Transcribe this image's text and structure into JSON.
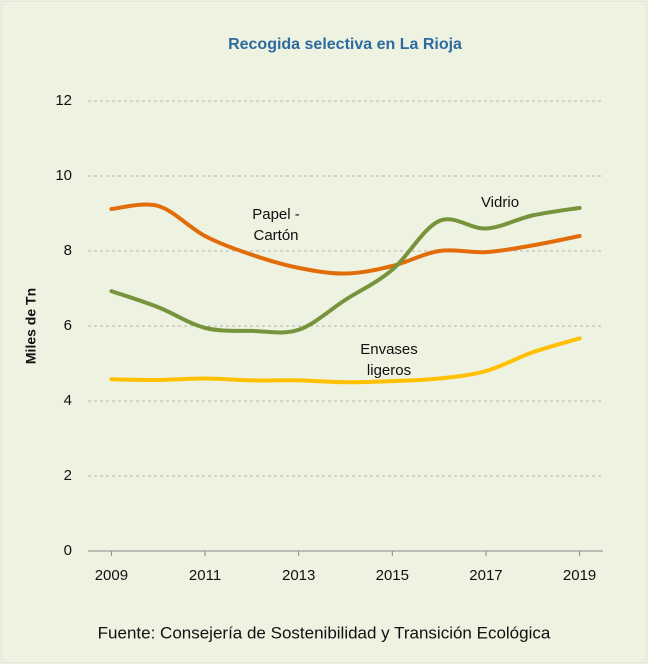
{
  "chart_data": {
    "type": "line",
    "title": "Recogida selectiva en La Rioja",
    "y_label": "Miles de Tn",
    "source": "Fuente: Consejería de Sostenibilidad y Transición Ecológica",
    "x": [
      2009,
      2010,
      2011,
      2012,
      2013,
      2014,
      2015,
      2016,
      2017,
      2018,
      2019
    ],
    "xlim": [
      2008.5,
      2019.5
    ],
    "xticks": [
      2009,
      2011,
      2013,
      2015,
      2017,
      2019
    ],
    "ylim": [
      0,
      12
    ],
    "yticks": [
      0,
      2,
      4,
      6,
      8,
      10,
      12
    ],
    "grid": true,
    "series": [
      {
        "color": "#e36c0a",
        "values": [
          9.12,
          9.2,
          8.4,
          7.9,
          7.55,
          7.4,
          7.6,
          8.0,
          7.97,
          8.15,
          8.4
        ]
      },
      {
        "color": "#77933c",
        "values": [
          6.93,
          6.5,
          5.95,
          5.87,
          5.9,
          6.7,
          7.5,
          8.8,
          8.6,
          8.95,
          9.15
        ]
      },
      {
        "color": "#ffc000",
        "values": [
          4.58,
          4.56,
          4.6,
          4.55,
          4.55,
          4.5,
          4.53,
          4.6,
          4.8,
          5.3,
          5.67
        ]
      }
    ],
    "annotations": [
      [
        "Papel -",
        "Cartón"
      ],
      [
        "Vidrio"
      ],
      [
        "Envases",
        "ligeros"
      ]
    ]
  }
}
